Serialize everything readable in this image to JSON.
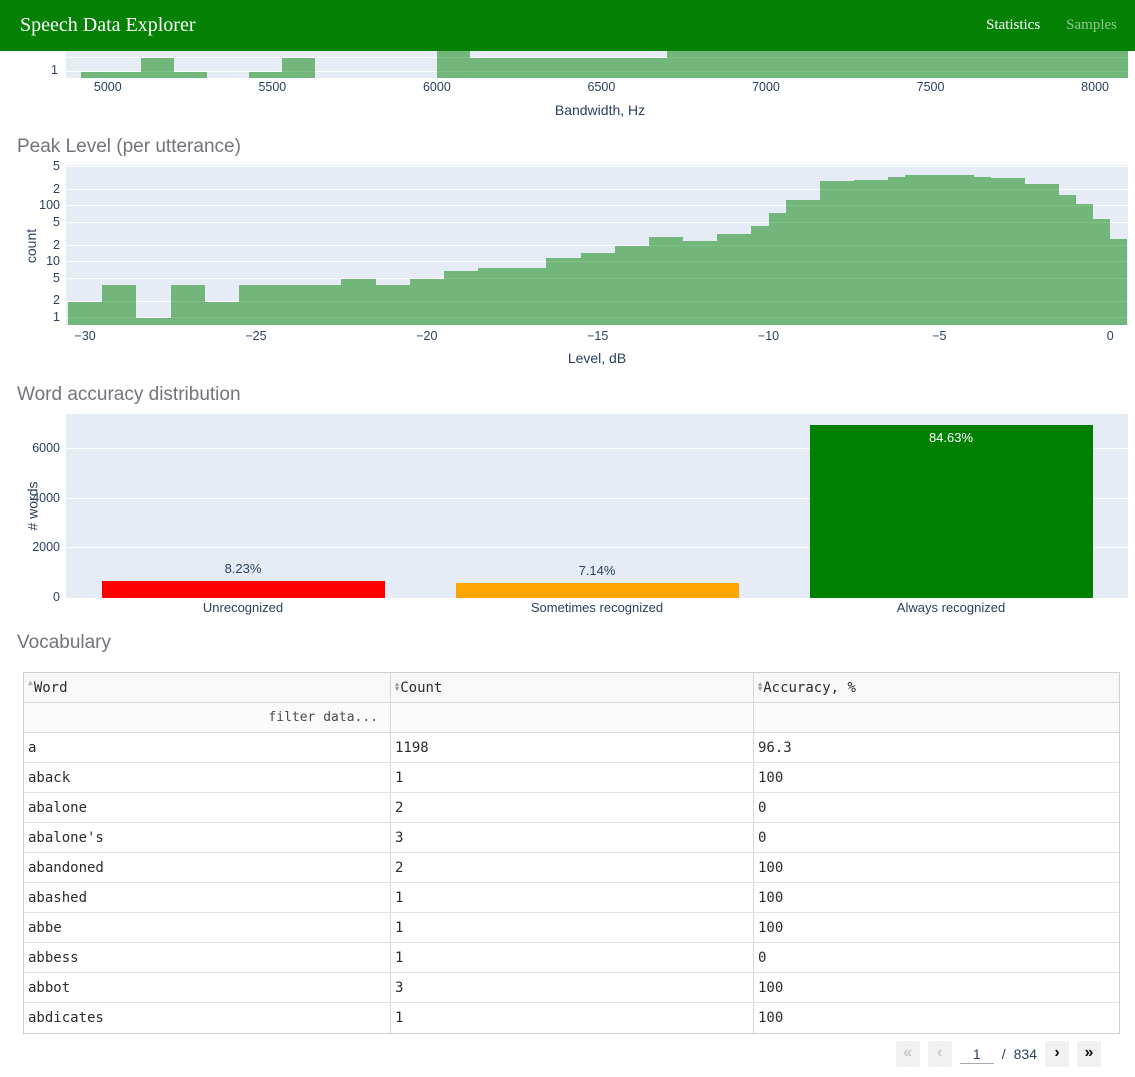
{
  "navbar": {
    "title": "Speech Data Explorer",
    "links": [
      {
        "label": "Statistics",
        "active": true
      },
      {
        "label": "Samples",
        "active": false
      }
    ]
  },
  "colors": {
    "navbar_green": "#058205",
    "plot_background": "#e5ecf6",
    "histogram_bar": "rgba(0,128,0,0.5)",
    "axis_text": "#2a3f5f",
    "heading_gray": "#73737b",
    "unrecognized_red": "#ff0000",
    "sometimes_orange": "#ffa500",
    "always_green": "#008000"
  },
  "chart_data": [
    {
      "type": "bar",
      "name": "bandwidth-histogram",
      "xlabel": "Bandwidth, Hz",
      "yscale": "log",
      "visible_y_tick": "1",
      "x_ticks": [
        5000,
        5500,
        6000,
        6500,
        7000,
        7500,
        8000
      ],
      "xlim": [
        4873,
        8100
      ],
      "grid_values": [
        1,
        2
      ],
      "bars": [
        {
          "x0": 4920,
          "x1": 5100,
          "count": 1
        },
        {
          "x0": 5100,
          "x1": 5200,
          "count": 2
        },
        {
          "x0": 5200,
          "x1": 5300,
          "count": 1
        },
        {
          "x0": 5430,
          "x1": 5530,
          "count": 1
        },
        {
          "x0": 5530,
          "x1": 5630,
          "count": 2
        },
        {
          "x0": 6000,
          "x1": 6100,
          "count": 6
        },
        {
          "x0": 6100,
          "x1": 6700,
          "count": 2
        },
        {
          "x0": 6700,
          "x1": 8100,
          "count": 6
        }
      ]
    },
    {
      "type": "histogram",
      "name": "peak-level-histogram",
      "title": "Peak Level (per utterance)",
      "xlabel": "Level, dB",
      "ylabel": "count",
      "yscale": "log",
      "bin_start": -30.5,
      "bin_width": 0.5,
      "counts": [
        2,
        2,
        4,
        4,
        1,
        1,
        4,
        4,
        2,
        2,
        4,
        4,
        4,
        4,
        4,
        4,
        5,
        5,
        4,
        4,
        5,
        5,
        7,
        7,
        8,
        8,
        8,
        8,
        12,
        12,
        15,
        15,
        20,
        20,
        28,
        28,
        24,
        24,
        32,
        32,
        45,
        75,
        130,
        130,
        280,
        280,
        300,
        300,
        330,
        360,
        370,
        360,
        360,
        340,
        320,
        320,
        250,
        250,
        160,
        110,
        60,
        26
      ],
      "x_ticks": [
        -30,
        -25,
        -20,
        -15,
        -10,
        -5,
        0
      ],
      "y_ticks": [
        {
          "v": 1,
          "label": "1"
        },
        {
          "v": 2,
          "label": "2"
        },
        {
          "v": 5,
          "label": "5"
        },
        {
          "v": 10,
          "label": "10"
        },
        {
          "v": 20,
          "label": "2"
        },
        {
          "v": 50,
          "label": "5"
        },
        {
          "v": 100,
          "label": "100"
        },
        {
          "v": 200,
          "label": "2"
        },
        {
          "v": 500,
          "label": "5"
        }
      ],
      "ylim": [
        0.76,
        550
      ],
      "xlim": [
        -30.56,
        0.52
      ]
    },
    {
      "type": "bar",
      "name": "word-accuracy-distribution",
      "title": "Word accuracy distribution",
      "ylabel": "# words",
      "categories": [
        "Unrecognized",
        "Sometimes recognized",
        "Always recognized"
      ],
      "values": [
        675,
        585,
        6940
      ],
      "percent_labels": [
        "8.23%",
        "7.14%",
        "84.63%"
      ],
      "colors": [
        "#ff0000",
        "#ffa500",
        "#008000"
      ],
      "y_ticks": [
        0,
        2000,
        4000,
        6000
      ],
      "ylim": [
        0,
        7400
      ]
    }
  ],
  "table": {
    "heading": "Vocabulary",
    "columns": [
      {
        "label": "Word",
        "sort": "asc"
      },
      {
        "label": "Count",
        "sort": "none"
      },
      {
        "label": "Accuracy, %",
        "sort": "none"
      }
    ],
    "filter_placeholder": "filter data...",
    "rows": [
      [
        "a",
        "1198",
        "96.3"
      ],
      [
        "aback",
        "1",
        "100"
      ],
      [
        "abalone",
        "2",
        "0"
      ],
      [
        "abalone's",
        "3",
        "0"
      ],
      [
        "abandoned",
        "2",
        "100"
      ],
      [
        "abashed",
        "1",
        "100"
      ],
      [
        "abbe",
        "1",
        "100"
      ],
      [
        "abbess",
        "1",
        "0"
      ],
      [
        "abbot",
        "3",
        "100"
      ],
      [
        "abdicates",
        "1",
        "100"
      ]
    ]
  },
  "pagination": {
    "first": "«",
    "prev": "‹",
    "page": "1",
    "separator": "/",
    "total": "834",
    "next": "›",
    "last": "»"
  }
}
